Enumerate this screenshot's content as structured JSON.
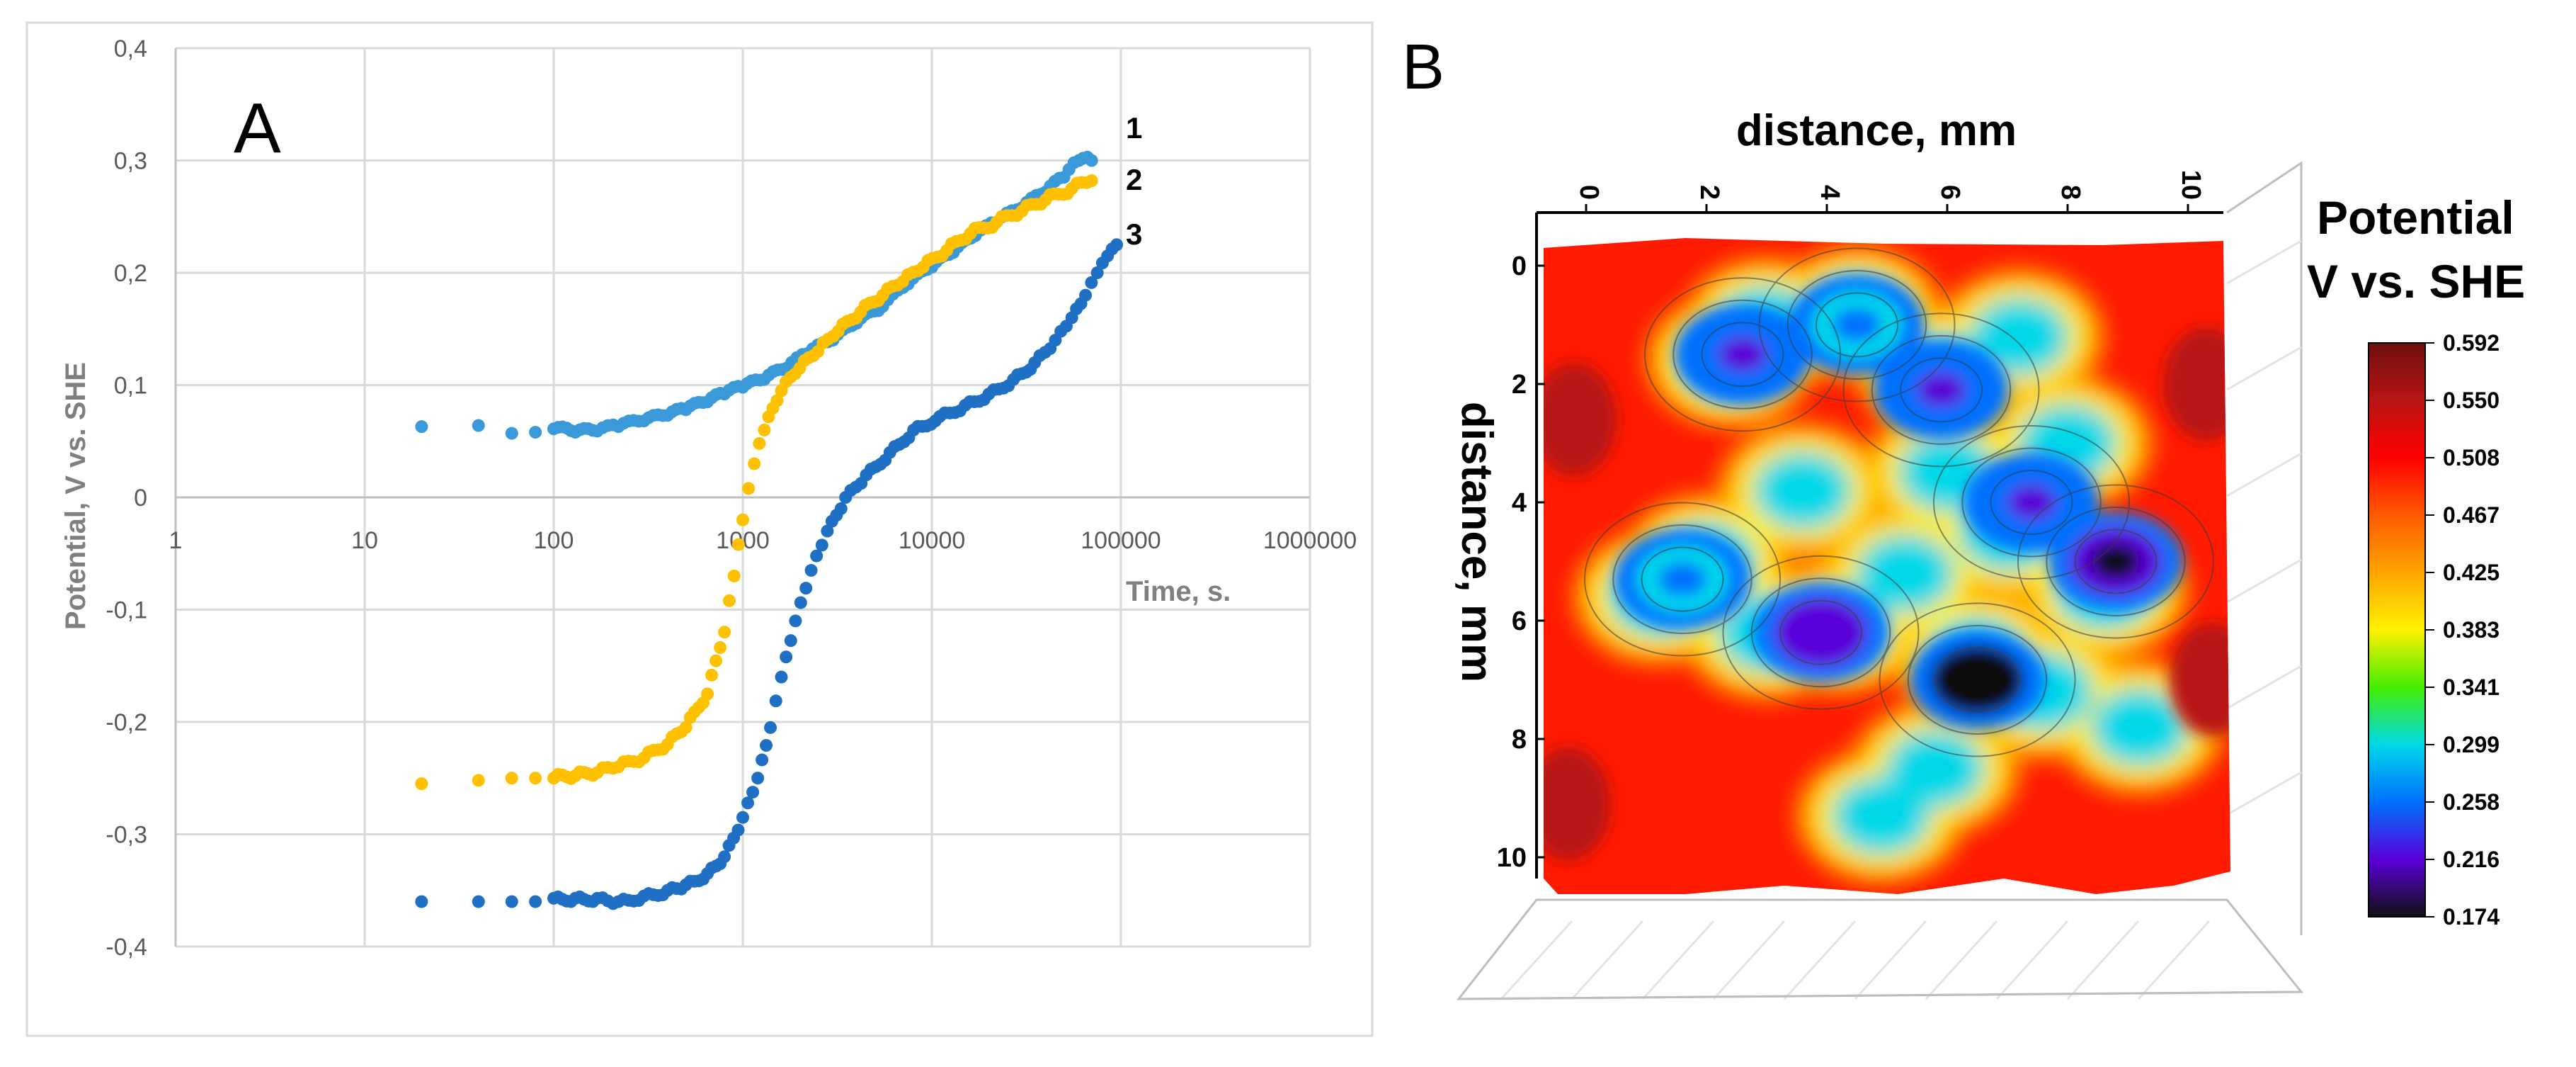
{
  "chart_data": [
    {
      "panel": "A",
      "type": "scatter",
      "xlabel": "Time, s.",
      "ylabel": "Potential, V vs. SHE",
      "x_scale": "log",
      "xlim": [
        1,
        1000000
      ],
      "ylim": [
        -0.4,
        0.4
      ],
      "x_ticks": [
        "1",
        "10",
        "100",
        "1000",
        "10000",
        "100000",
        "1000000"
      ],
      "y_ticks": [
        "0,4",
        "0,3",
        "0,2",
        "0,1",
        "0",
        "-0,1",
        "-0,2",
        "-0,3",
        "-0,4"
      ],
      "grid": true,
      "series": [
        {
          "name": "1",
          "color": "#3a9ad9",
          "points": [
            [
              20,
              0.063
            ],
            [
              40,
              0.064
            ],
            [
              60,
              0.057
            ],
            [
              80,
              0.058
            ],
            [
              100,
              0.061
            ],
            [
              130,
              0.058
            ],
            [
              170,
              0.059
            ],
            [
              220,
              0.063
            ],
            [
              300,
              0.068
            ],
            [
              400,
              0.073
            ],
            [
              500,
              0.078
            ],
            [
              650,
              0.085
            ],
            [
              800,
              0.092
            ],
            [
              1000,
              0.098
            ],
            [
              1300,
              0.105
            ],
            [
              1700,
              0.115
            ],
            [
              2200,
              0.128
            ],
            [
              3000,
              0.14
            ],
            [
              4000,
              0.155
            ],
            [
              5500,
              0.17
            ],
            [
              7500,
              0.19
            ],
            [
              10000,
              0.205
            ],
            [
              13000,
              0.218
            ],
            [
              17000,
              0.233
            ],
            [
              22000,
              0.245
            ],
            [
              30000,
              0.258
            ],
            [
              40000,
              0.272
            ],
            [
              50000,
              0.285
            ],
            [
              60000,
              0.3
            ],
            [
              70000,
              0.3
            ]
          ]
        },
        {
          "name": "2",
          "color": "#ffc000",
          "points": [
            [
              20,
              -0.255
            ],
            [
              40,
              -0.252
            ],
            [
              60,
              -0.25
            ],
            [
              80,
              -0.25
            ],
            [
              100,
              -0.25
            ],
            [
              130,
              -0.248
            ],
            [
              170,
              -0.245
            ],
            [
              220,
              -0.24
            ],
            [
              300,
              -0.232
            ],
            [
              400,
              -0.22
            ],
            [
              500,
              -0.205
            ],
            [
              650,
              -0.175
            ],
            [
              800,
              -0.12
            ],
            [
              900,
              -0.07
            ],
            [
              1000,
              -0.02
            ],
            [
              1150,
              0.03
            ],
            [
              1300,
              0.06
            ],
            [
              1600,
              0.095
            ],
            [
              2000,
              0.115
            ],
            [
              2500,
              0.13
            ],
            [
              3200,
              0.148
            ],
            [
              4200,
              0.165
            ],
            [
              5500,
              0.18
            ],
            [
              7000,
              0.192
            ],
            [
              9000,
              0.205
            ],
            [
              12000,
              0.22
            ],
            [
              16000,
              0.235
            ],
            [
              22000,
              0.245
            ],
            [
              30000,
              0.255
            ],
            [
              40000,
              0.265
            ],
            [
              55000,
              0.275
            ],
            [
              70000,
              0.282
            ]
          ]
        },
        {
          "name": "3",
          "color": "#1f6fc4",
          "points": [
            [
              20,
              -0.36
            ],
            [
              40,
              -0.36
            ],
            [
              60,
              -0.36
            ],
            [
              80,
              -0.36
            ],
            [
              100,
              -0.357
            ],
            [
              130,
              -0.357
            ],
            [
              170,
              -0.357
            ],
            [
              220,
              -0.36
            ],
            [
              300,
              -0.355
            ],
            [
              400,
              -0.35
            ],
            [
              500,
              -0.345
            ],
            [
              650,
              -0.335
            ],
            [
              800,
              -0.32
            ],
            [
              1000,
              -0.285
            ],
            [
              1200,
              -0.25
            ],
            [
              1400,
              -0.205
            ],
            [
              1600,
              -0.16
            ],
            [
              1900,
              -0.11
            ],
            [
              2300,
              -0.065
            ],
            [
              2800,
              -0.03
            ],
            [
              3500,
              0.0
            ],
            [
              4500,
              0.02
            ],
            [
              6000,
              0.04
            ],
            [
              8000,
              0.06
            ],
            [
              11000,
              0.072
            ],
            [
              15000,
              0.082
            ],
            [
              20000,
              0.092
            ],
            [
              27000,
              0.105
            ],
            [
              35000,
              0.12
            ],
            [
              45000,
              0.14
            ],
            [
              55000,
              0.16
            ],
            [
              65000,
              0.18
            ],
            [
              75000,
              0.2
            ],
            [
              85000,
              0.215
            ],
            [
              95000,
              0.225
            ]
          ]
        }
      ]
    },
    {
      "panel": "B",
      "type": "heatmap",
      "title": "Potential V vs. SHE",
      "xlabel": "distance, mm",
      "ylabel": "distance, mm",
      "x_ticks": [
        "0",
        "2",
        "4",
        "6",
        "8",
        "10"
      ],
      "y_ticks": [
        "0",
        "2",
        "4",
        "6",
        "8",
        "10"
      ],
      "xlim": [
        0,
        10
      ],
      "ylim": [
        0,
        10
      ],
      "colorbar_ticks": [
        "0.592",
        "0.550",
        "0.508",
        "0.467",
        "0.425",
        "0.383",
        "0.341",
        "0.299",
        "0.258",
        "0.216",
        "0.174"
      ],
      "colorbar_colors": [
        "#6e0f0f",
        "#b81414",
        "#ff0000",
        "#ff5a00",
        "#ffa500",
        "#fff000",
        "#44ee00",
        "#00d8e8",
        "#0070ff",
        "#5a00d8",
        "#111111"
      ],
      "low_potential_regions": [
        {
          "x": 2.6,
          "y": 1.5,
          "level": 0.23
        },
        {
          "x": 4.5,
          "y": 1.0,
          "level": 0.28
        },
        {
          "x": 5.9,
          "y": 2.1,
          "level": 0.25
        },
        {
          "x": 7.4,
          "y": 4.0,
          "level": 0.24
        },
        {
          "x": 8.8,
          "y": 5.0,
          "level": 0.2
        },
        {
          "x": 6.5,
          "y": 7.0,
          "level": 0.18
        },
        {
          "x": 3.9,
          "y": 6.2,
          "level": 0.22
        },
        {
          "x": 1.6,
          "y": 5.3,
          "level": 0.27
        }
      ]
    }
  ],
  "panel_a_label": "A",
  "panel_b_label": "B"
}
